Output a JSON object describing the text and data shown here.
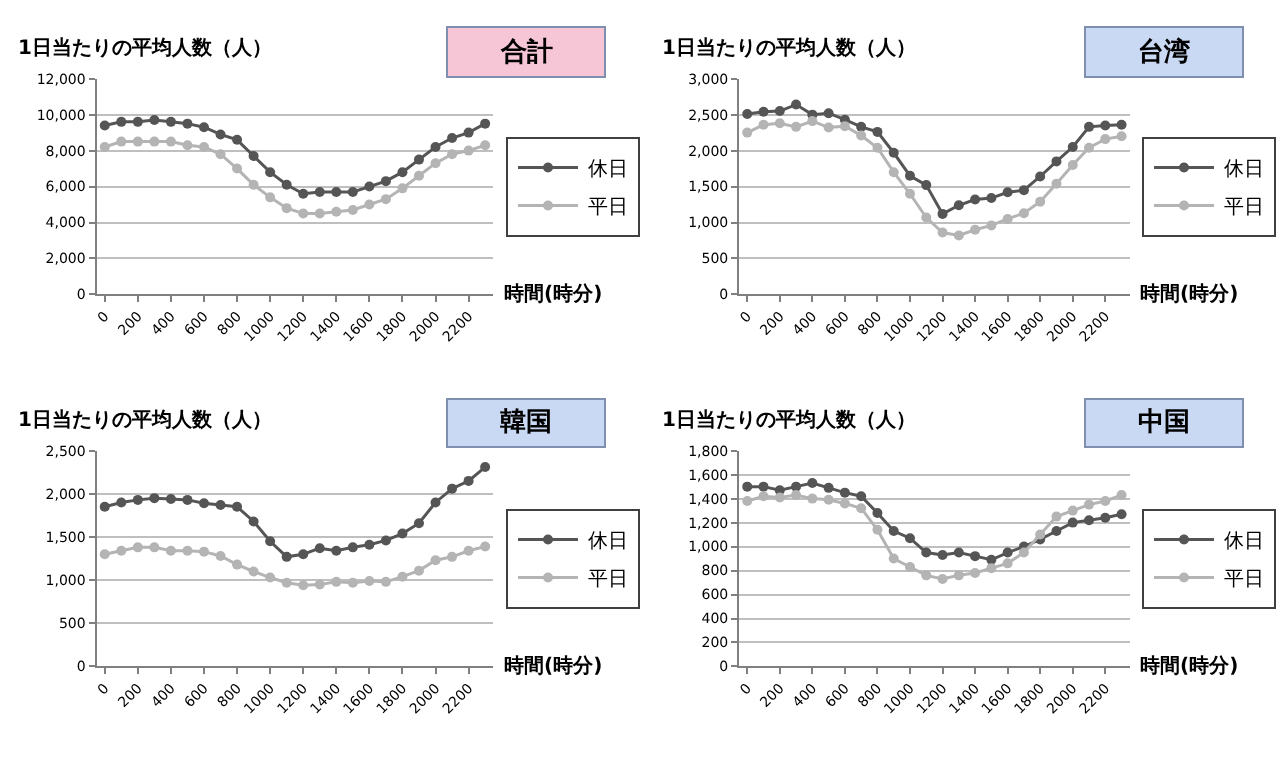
{
  "chart_data": [
    {
      "type": "line",
      "title": "合計",
      "ylabel": "1日当たりの平均人数（人）",
      "xlabel": "時間(時分)",
      "x": [
        0,
        100,
        200,
        300,
        400,
        500,
        600,
        700,
        800,
        900,
        1000,
        1100,
        1200,
        1300,
        1400,
        1500,
        1600,
        1700,
        1800,
        1900,
        2000,
        2100,
        2200,
        2300
      ],
      "xlim": [
        -50,
        2350
      ],
      "xticks": [
        0,
        200,
        400,
        600,
        800,
        1000,
        1200,
        1400,
        1600,
        1800,
        2000,
        2200
      ],
      "ylim": [
        0,
        12000
      ],
      "yticks": [
        {
          "value": 0,
          "label": "0"
        },
        {
          "value": 2000,
          "label": "2,000"
        },
        {
          "value": 4000,
          "label": "4,000"
        },
        {
          "value": 6000,
          "label": "6,000"
        },
        {
          "value": 8000,
          "label": "8,000"
        },
        {
          "value": 10000,
          "label": "10,000"
        },
        {
          "value": 12000,
          "label": "12,000"
        }
      ],
      "grid": "y",
      "legend": "right",
      "marker": "circle",
      "series": [
        {
          "name": "休日",
          "color": "#555555",
          "values": [
            9400,
            9600,
            9600,
            9700,
            9600,
            9500,
            9300,
            8900,
            8600,
            7700,
            6800,
            6100,
            5600,
            5700,
            5700,
            5700,
            6000,
            6300,
            6800,
            7500,
            8200,
            8700,
            9000,
            9500
          ]
        },
        {
          "name": "平日",
          "color": "#b4b4b4",
          "values": [
            8200,
            8500,
            8500,
            8500,
            8500,
            8300,
            8200,
            7800,
            7000,
            6100,
            5400,
            4800,
            4500,
            4500,
            4600,
            4700,
            5000,
            5300,
            5900,
            6600,
            7300,
            7800,
            8000,
            8300
          ]
        }
      ]
    },
    {
      "type": "line",
      "title": "台湾",
      "ylabel": "1日当たりの平均人数（人）",
      "xlabel": "時間(時分)",
      "x": [
        0,
        100,
        200,
        300,
        400,
        500,
        600,
        700,
        800,
        900,
        1000,
        1100,
        1200,
        1300,
        1400,
        1500,
        1600,
        1700,
        1800,
        1900,
        2000,
        2100,
        2200,
        2300
      ],
      "xlim": [
        -50,
        2350
      ],
      "xticks": [
        0,
        200,
        400,
        600,
        800,
        1000,
        1200,
        1400,
        1600,
        1800,
        2000,
        2200
      ],
      "ylim": [
        0,
        3000
      ],
      "yticks": [
        {
          "value": 0,
          "label": "0"
        },
        {
          "value": 500,
          "label": "500"
        },
        {
          "value": 1000,
          "label": "1,000"
        },
        {
          "value": 1500,
          "label": "1,500"
        },
        {
          "value": 2000,
          "label": "2,000"
        },
        {
          "value": 2500,
          "label": "2,500"
        },
        {
          "value": 3000,
          "label": "3,000"
        }
      ],
      "grid": "y",
      "legend": "right",
      "marker": "circle",
      "series": [
        {
          "name": "休日",
          "color": "#555555",
          "values": [
            2510,
            2540,
            2550,
            2640,
            2500,
            2520,
            2430,
            2330,
            2260,
            1970,
            1650,
            1520,
            1120,
            1240,
            1320,
            1340,
            1420,
            1450,
            1640,
            1850,
            2050,
            2330,
            2350,
            2360
          ]
        },
        {
          "name": "平日",
          "color": "#b4b4b4",
          "values": [
            2250,
            2360,
            2380,
            2330,
            2410,
            2320,
            2340,
            2210,
            2040,
            1700,
            1400,
            1070,
            860,
            820,
            900,
            960,
            1050,
            1130,
            1290,
            1540,
            1800,
            2040,
            2160,
            2200
          ]
        }
      ]
    },
    {
      "type": "line",
      "title": "韓国",
      "ylabel": "1日当たりの平均人数（人）",
      "xlabel": "時間(時分)",
      "x": [
        0,
        100,
        200,
        300,
        400,
        500,
        600,
        700,
        800,
        900,
        1000,
        1100,
        1200,
        1300,
        1400,
        1500,
        1600,
        1700,
        1800,
        1900,
        2000,
        2100,
        2200,
        2300
      ],
      "xlim": [
        -50,
        2350
      ],
      "xticks": [
        0,
        200,
        400,
        600,
        800,
        1000,
        1200,
        1400,
        1600,
        1800,
        2000,
        2200
      ],
      "ylim": [
        0,
        2500
      ],
      "yticks": [
        {
          "value": 0,
          "label": "0"
        },
        {
          "value": 500,
          "label": "500"
        },
        {
          "value": 1000,
          "label": "1,000"
        },
        {
          "value": 1500,
          "label": "1,500"
        },
        {
          "value": 2000,
          "label": "2,000"
        },
        {
          "value": 2500,
          "label": "2,500"
        }
      ],
      "grid": "y",
      "legend": "right",
      "marker": "circle",
      "series": [
        {
          "name": "休日",
          "color": "#555555",
          "values": [
            1850,
            1900,
            1930,
            1950,
            1940,
            1930,
            1890,
            1870,
            1850,
            1680,
            1450,
            1270,
            1300,
            1370,
            1340,
            1380,
            1410,
            1460,
            1540,
            1660,
            1900,
            2060,
            2150,
            2310
          ]
        },
        {
          "name": "平日",
          "color": "#b4b4b4",
          "values": [
            1300,
            1340,
            1380,
            1380,
            1340,
            1340,
            1330,
            1280,
            1180,
            1100,
            1030,
            970,
            940,
            950,
            980,
            970,
            990,
            980,
            1040,
            1110,
            1230,
            1270,
            1340,
            1390
          ]
        }
      ]
    },
    {
      "type": "line",
      "title": "中国",
      "ylabel": "1日当たりの平均人数（人）",
      "xlabel": "時間(時分)",
      "x": [
        0,
        100,
        200,
        300,
        400,
        500,
        600,
        700,
        800,
        900,
        1000,
        1100,
        1200,
        1300,
        1400,
        1500,
        1600,
        1700,
        1800,
        1900,
        2000,
        2100,
        2200,
        2300
      ],
      "xlim": [
        -50,
        2350
      ],
      "xticks": [
        0,
        200,
        400,
        600,
        800,
        1000,
        1200,
        1400,
        1600,
        1800,
        2000,
        2200
      ],
      "ylim": [
        0,
        1800
      ],
      "yticks": [
        {
          "value": 0,
          "label": "0"
        },
        {
          "value": 200,
          "label": "200"
        },
        {
          "value": 400,
          "label": "400"
        },
        {
          "value": 600,
          "label": "600"
        },
        {
          "value": 800,
          "label": "800"
        },
        {
          "value": 1000,
          "label": "1,000"
        },
        {
          "value": 1200,
          "label": "1,200"
        },
        {
          "value": 1400,
          "label": "1,400"
        },
        {
          "value": 1600,
          "label": "1,600"
        },
        {
          "value": 1800,
          "label": "1,800"
        }
      ],
      "grid": "y",
      "legend": "right",
      "marker": "circle",
      "series": [
        {
          "name": "休日",
          "color": "#555555",
          "values": [
            1500,
            1500,
            1470,
            1500,
            1530,
            1490,
            1450,
            1420,
            1280,
            1130,
            1070,
            950,
            930,
            950,
            920,
            890,
            950,
            1000,
            1060,
            1130,
            1200,
            1220,
            1240,
            1270
          ]
        },
        {
          "name": "平日",
          "color": "#b4b4b4",
          "values": [
            1380,
            1420,
            1410,
            1430,
            1400,
            1390,
            1360,
            1320,
            1140,
            900,
            830,
            760,
            730,
            760,
            780,
            820,
            860,
            950,
            1100,
            1250,
            1300,
            1350,
            1380,
            1430
          ]
        }
      ]
    }
  ]
}
